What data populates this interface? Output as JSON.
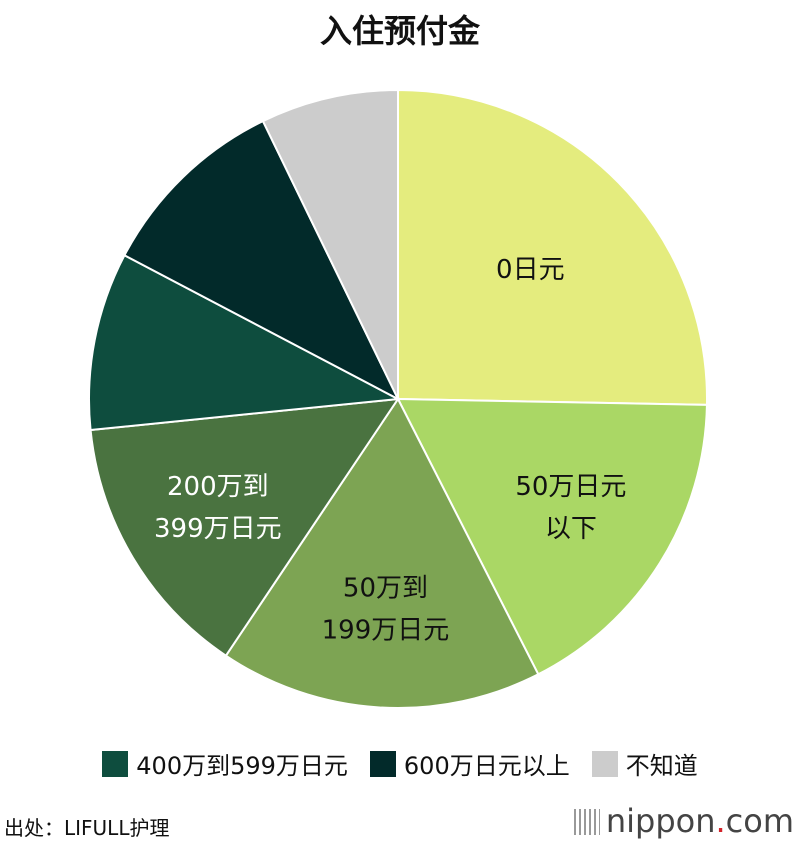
{
  "chart_data": {
    "type": "pie",
    "title": "入住预付金",
    "start": "top",
    "direction": "clockwise",
    "slices": [
      {
        "label": "0日元",
        "lines": [
          "0日元"
        ],
        "value": 25.3,
        "color": "#e4ec7e",
        "text_color": "#111111",
        "in_legend": false
      },
      {
        "label": "50万日元以下",
        "lines": [
          "50万日元",
          "以下"
        ],
        "value": 17.2,
        "color": "#aad765",
        "text_color": "#111111",
        "in_legend": false
      },
      {
        "label": "50万到199万日元",
        "lines": [
          "50万到",
          "199万日元"
        ],
        "value": 16.9,
        "color": "#7da453",
        "text_color": "#111111",
        "in_legend": false
      },
      {
        "label": "200万到399万日元",
        "lines": [
          "200万到",
          "399万日元"
        ],
        "value": 14.0,
        "color": "#4a7340",
        "text_color": "#ffffff",
        "in_legend": false
      },
      {
        "label": "400万到599万日元",
        "lines": [],
        "value": 9.3,
        "color": "#0e4d3e",
        "text_color": "#ffffff",
        "in_legend": true
      },
      {
        "label": "600万日元以上",
        "lines": [],
        "value": 10.1,
        "color": "#022a2a",
        "text_color": "#ffffff",
        "in_legend": true
      },
      {
        "label": "不知道",
        "lines": [],
        "value": 7.2,
        "color": "#cccccc",
        "text_color": "#111111",
        "in_legend": true
      }
    ],
    "legend_position": "bottom"
  },
  "footer": {
    "source": "出处：LIFULL护理",
    "logo_main": "nippon",
    "logo_dot": ".",
    "logo_tail": "com"
  }
}
